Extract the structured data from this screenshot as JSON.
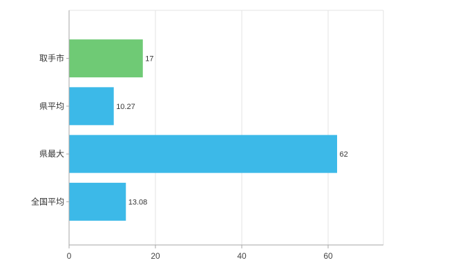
{
  "chart_data": {
    "type": "bar",
    "orientation": "horizontal",
    "title": "",
    "xlabel": "",
    "ylabel": "",
    "categories": [
      "取手市",
      "県平均",
      "県最大",
      "全国平均"
    ],
    "values": [
      17,
      10.27,
      62,
      13.08
    ],
    "value_labels": [
      "17",
      "10.27",
      "62",
      "13.08"
    ],
    "bar_colors": [
      "#6fca75",
      "#3cb9e8",
      "#3cb9e8",
      "#3cb9e8"
    ],
    "xticks": [
      0,
      20,
      40,
      60
    ],
    "xtick_labels": [
      "0",
      "20",
      "40",
      "60"
    ],
    "xlim": [
      0,
      72.8
    ],
    "grid": true,
    "legend": null,
    "colors": {
      "grid": "#e3e3e3",
      "axis": "#a6a6a6",
      "tick_text": "#444444",
      "label_text": "#333333",
      "background": "#ffffff"
    }
  }
}
